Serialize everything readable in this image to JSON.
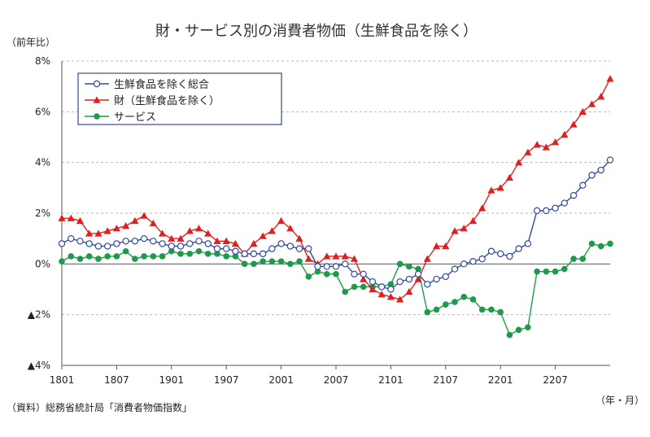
{
  "chart_data": {
    "type": "line",
    "title": "財・サービス別の消費者物価（生鮮食品を除く）",
    "ylabel": "（前年比）",
    "xlabel": "（年・月）",
    "source": "（資料）総務省統計局「消費者物価指数」",
    "ylim": [
      -4,
      8
    ],
    "y_ticks": [
      {
        "value": 8,
        "label": "8%"
      },
      {
        "value": 6,
        "label": "6%"
      },
      {
        "value": 4,
        "label": "4%"
      },
      {
        "value": 2,
        "label": "2%"
      },
      {
        "value": 0,
        "label": "0%"
      },
      {
        "value": -2,
        "label": "▲2%"
      },
      {
        "value": -4,
        "label": "▲4%"
      }
    ],
    "x_ticks": [
      {
        "index": 0,
        "label": "1801"
      },
      {
        "index": 6,
        "label": "1807"
      },
      {
        "index": 12,
        "label": "1901"
      },
      {
        "index": 18,
        "label": "1907"
      },
      {
        "index": 24,
        "label": "2001"
      },
      {
        "index": 30,
        "label": "2007"
      },
      {
        "index": 36,
        "label": "2101"
      },
      {
        "index": 42,
        "label": "2107"
      },
      {
        "index": 48,
        "label": "2201"
      },
      {
        "index": 54,
        "label": "2207"
      }
    ],
    "grid": true,
    "legend_position": "top-left",
    "series": [
      {
        "name": "生鮮食品を除く総合",
        "color": "#2e4a9e",
        "marker": "open-circle",
        "values": [
          0.8,
          1.0,
          0.9,
          0.8,
          0.7,
          0.7,
          0.8,
          0.9,
          0.9,
          1.0,
          0.9,
          0.8,
          0.7,
          0.7,
          0.8,
          0.9,
          0.8,
          0.6,
          0.6,
          0.5,
          0.4,
          0.4,
          0.4,
          0.6,
          0.8,
          0.7,
          0.6,
          0.6,
          -0.1,
          -0.1,
          -0.1,
          0.0,
          -0.4,
          -0.4,
          -0.7,
          -0.9,
          -1.0,
          -0.7,
          -0.6,
          -0.4,
          -0.8,
          -0.6,
          -0.5,
          -0.2,
          0.0,
          0.1,
          0.2,
          0.5,
          0.4,
          0.3,
          0.6,
          0.8,
          2.1,
          2.1,
          2.2,
          2.4,
          2.7,
          3.1,
          3.5,
          3.7,
          4.1
        ]
      },
      {
        "name": "財（生鮮食品を除く）",
        "color": "#e0201e",
        "marker": "triangle",
        "values": [
          1.8,
          1.8,
          1.7,
          1.2,
          1.2,
          1.3,
          1.4,
          1.5,
          1.7,
          1.9,
          1.6,
          1.2,
          1.0,
          1.0,
          1.3,
          1.4,
          1.2,
          0.9,
          0.9,
          0.8,
          0.4,
          0.8,
          1.1,
          1.3,
          1.7,
          1.4,
          1.0,
          0.2,
          0.0,
          0.3,
          0.3,
          0.3,
          0.2,
          -0.6,
          -1.0,
          -1.2,
          -1.3,
          -1.4,
          -1.1,
          -0.6,
          0.2,
          0.7,
          0.7,
          1.3,
          1.4,
          1.7,
          2.2,
          2.9,
          3.0,
          3.4,
          4.0,
          4.4,
          4.7,
          4.6,
          4.8,
          5.1,
          5.5,
          6.0,
          6.3,
          6.6,
          7.3
        ]
      },
      {
        "name": "サービス",
        "color": "#1d9a4a",
        "marker": "circle",
        "values": [
          0.1,
          0.3,
          0.2,
          0.3,
          0.2,
          0.3,
          0.3,
          0.5,
          0.2,
          0.3,
          0.3,
          0.3,
          0.5,
          0.4,
          0.4,
          0.5,
          0.4,
          0.4,
          0.3,
          0.3,
          0.0,
          0.0,
          0.1,
          0.1,
          0.1,
          0.0,
          0.1,
          -0.5,
          -0.3,
          -0.4,
          -0.4,
          -1.1,
          -0.9,
          -0.9,
          -0.9,
          -0.9,
          -0.8,
          0.0,
          -0.1,
          -0.2,
          -1.9,
          -1.8,
          -1.6,
          -1.5,
          -1.3,
          -1.4,
          -1.8,
          -1.8,
          -1.9,
          -2.8,
          -2.6,
          -2.5,
          -0.3,
          -0.3,
          -0.3,
          -0.2,
          0.2,
          0.2,
          0.8,
          0.7,
          0.8
        ]
      }
    ]
  }
}
